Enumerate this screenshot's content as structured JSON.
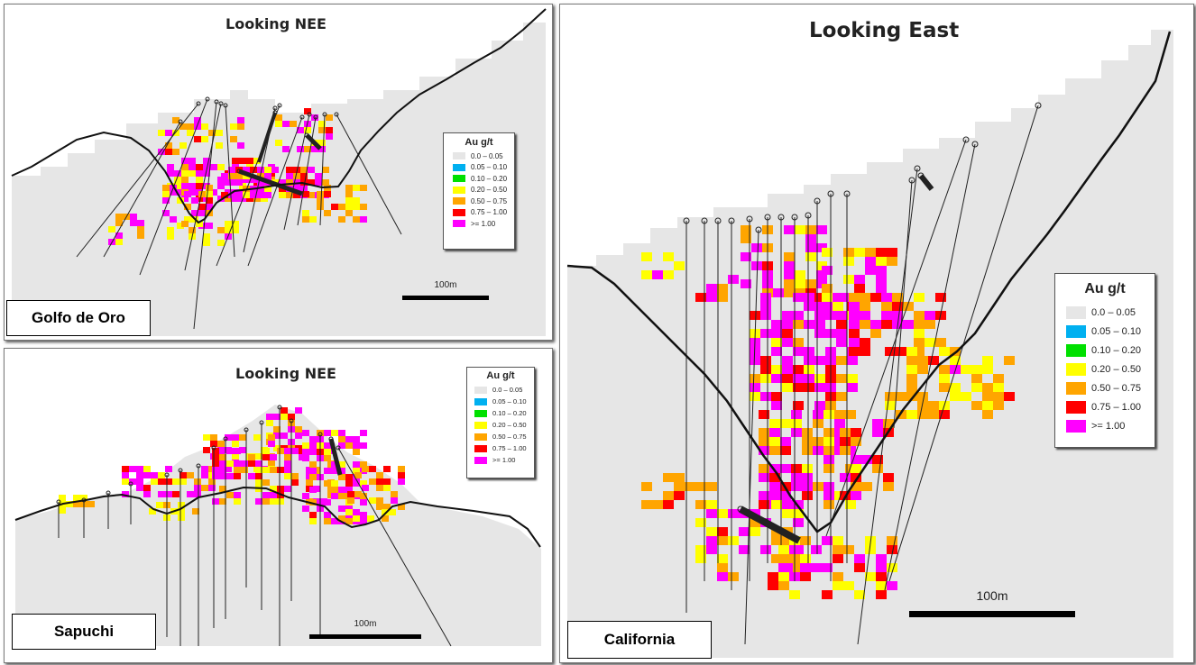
{
  "panels": [
    {
      "id": "golfo",
      "name": "Golfo de Oro",
      "title": "Looking NEE",
      "scale_label": "100m"
    },
    {
      "id": "sapuchi",
      "name": "Sapuchi",
      "title": "Looking NEE",
      "scale_label": "100m"
    },
    {
      "id": "california",
      "name": "California",
      "title": "Looking East",
      "scale_label": "100m"
    }
  ],
  "legend": {
    "title": "Au g/t",
    "items": [
      {
        "label": "0.0 – 0.05",
        "color": "#e6e6e6"
      },
      {
        "label": "0.05 – 0.10",
        "color": "#00b0f0"
      },
      {
        "label": "0.10 – 0.20",
        "color": "#00e000"
      },
      {
        "label": "0.20 – 0.50",
        "color": "#ffff00"
      },
      {
        "label": "0.50 – 0.75",
        "color": "#ffa500"
      },
      {
        "label": "0.75 – 1.00",
        "color": "#ff0000"
      },
      {
        "label": ">= 1.00",
        "color": "#ff00ff"
      }
    ]
  }
}
